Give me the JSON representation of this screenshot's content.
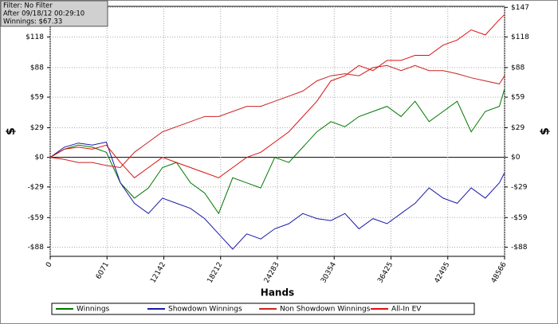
{
  "chart_data": {
    "type": "line",
    "info": [
      "Filter: No Filter",
      "After 09/18/12 00:29:10",
      "Winnings: $67.33"
    ],
    "xlabel": "Hands",
    "ylabel": "$",
    "x": [
      0,
      1500,
      3000,
      4500,
      6000,
      7500,
      9000,
      10500,
      12000,
      13500,
      15000,
      16500,
      18000,
      19500,
      21000,
      22500,
      24000,
      25500,
      27000,
      28500,
      30000,
      31500,
      33000,
      34500,
      36000,
      37500,
      39000,
      40500,
      42000,
      43500,
      45000,
      46500,
      48000,
      48566
    ],
    "series": [
      {
        "name": "Winnings",
        "color": "#007700",
        "values": [
          0,
          8,
          12,
          10,
          5,
          -25,
          -40,
          -30,
          -10,
          -5,
          -25,
          -35,
          -55,
          -20,
          -25,
          -30,
          0,
          -5,
          10,
          25,
          35,
          30,
          40,
          45,
          50,
          40,
          55,
          35,
          45,
          55,
          25,
          45,
          50,
          67.33
        ]
      },
      {
        "name": "Showdown Winnings",
        "color": "#1a1aa8",
        "values": [
          0,
          10,
          14,
          12,
          15,
          -25,
          -45,
          -55,
          -40,
          -45,
          -50,
          -60,
          -75,
          -90,
          -75,
          -80,
          -70,
          -65,
          -55,
          -60,
          -62,
          -55,
          -70,
          -60,
          -65,
          -55,
          -45,
          -30,
          -40,
          -45,
          -30,
          -40,
          -25,
          -15
        ]
      },
      {
        "name": "Non Showdown Winnings",
        "color": "#cc2222",
        "values": [
          0,
          -2,
          -5,
          -5,
          -8,
          -10,
          5,
          15,
          25,
          30,
          35,
          40,
          40,
          45,
          50,
          50,
          55,
          60,
          65,
          75,
          80,
          82,
          80,
          88,
          90,
          85,
          90,
          85,
          85,
          82,
          78,
          75,
          72,
          80
        ]
      },
      {
        "name": "All-In EV",
        "color": "#dd1111",
        "values": [
          0,
          8,
          10,
          8,
          12,
          -5,
          -20,
          -10,
          0,
          -5,
          -10,
          -15,
          -20,
          -10,
          0,
          5,
          15,
          25,
          40,
          55,
          75,
          80,
          90,
          85,
          95,
          95,
          100,
          100,
          110,
          115,
          125,
          120,
          135,
          140
        ]
      }
    ],
    "xlim": [
      0,
      48566
    ],
    "xticks": [
      0,
      6071,
      12142,
      18212,
      24283,
      30354,
      36425,
      42495,
      48566
    ],
    "ylim": [
      -97,
      148
    ],
    "yticks": [
      {
        "value": -88,
        "label": "-$88"
      },
      {
        "value": -59,
        "label": "-$59"
      },
      {
        "value": -29,
        "label": "-$29"
      },
      {
        "value": 0,
        "label": "$0"
      },
      {
        "value": 29,
        "label": "$29"
      },
      {
        "value": 59,
        "label": "$59"
      },
      {
        "value": 88,
        "label": "$88"
      },
      {
        "value": 118,
        "label": "$118"
      },
      {
        "value": 147,
        "label": "$147"
      }
    ],
    "grid": true
  }
}
